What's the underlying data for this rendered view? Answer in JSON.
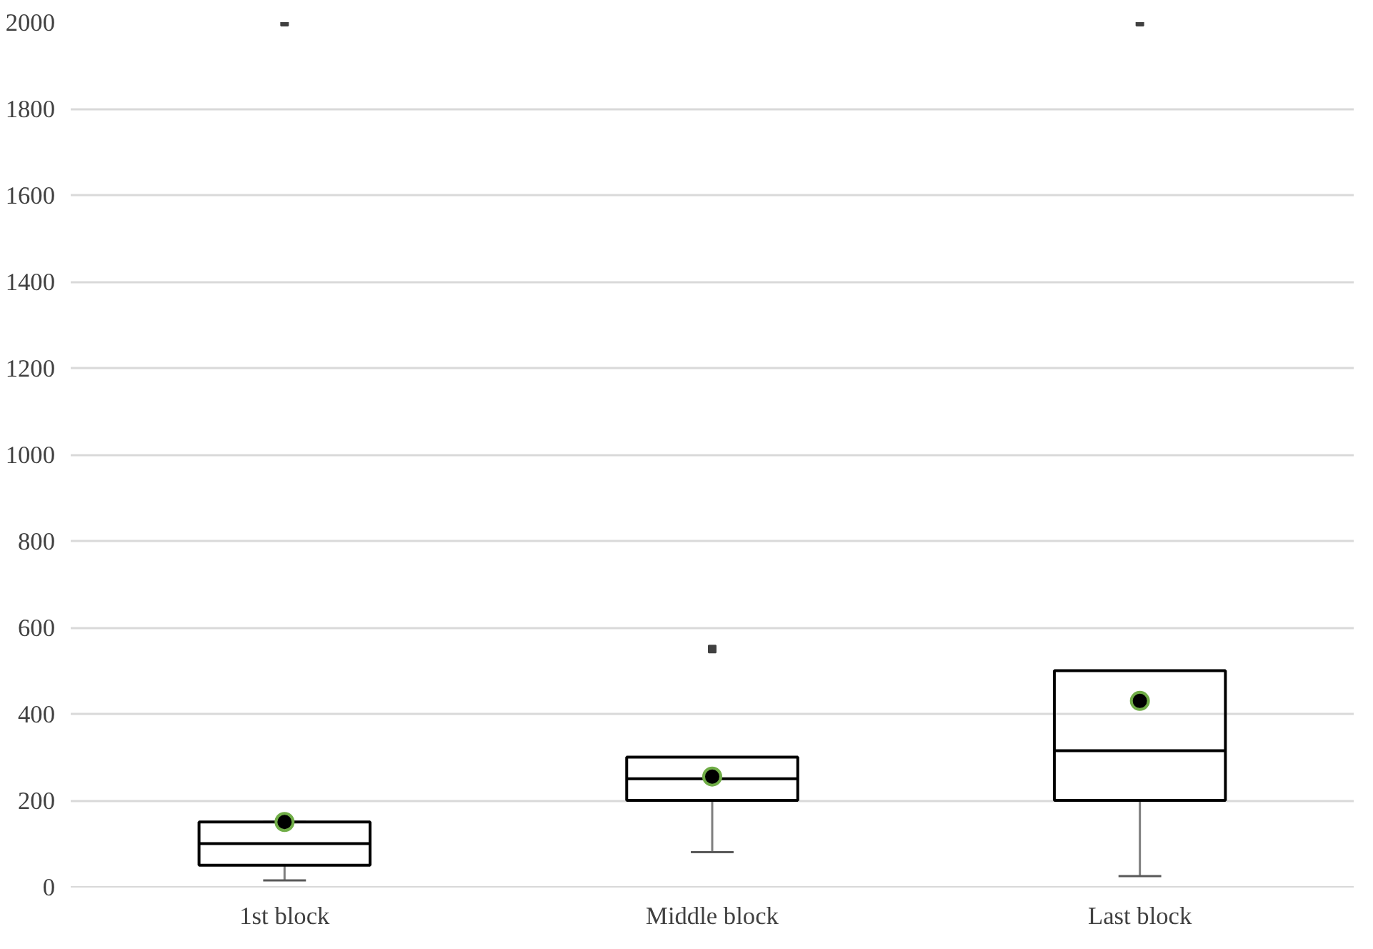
{
  "chart_data": {
    "type": "box",
    "categories": [
      "1st block",
      "Middle block",
      "Last block"
    ],
    "boxes": [
      {
        "low": 15,
        "q1": 50,
        "median": 100,
        "q3": 150,
        "high": 150,
        "mean": 150,
        "outliers": [
          2000
        ]
      },
      {
        "low": 80,
        "q1": 200,
        "median": 250,
        "q3": 300,
        "high": 300,
        "mean": 255,
        "outliers": [
          550
        ]
      },
      {
        "low": 25,
        "q1": 200,
        "median": 315,
        "q3": 500,
        "high": 500,
        "mean": 430,
        "outliers": [
          2000
        ]
      }
    ],
    "ylim": [
      0,
      2000
    ],
    "yticks": [
      0,
      200,
      400,
      600,
      800,
      1000,
      1200,
      1400,
      1600,
      1800,
      2000
    ],
    "grid": "y"
  }
}
